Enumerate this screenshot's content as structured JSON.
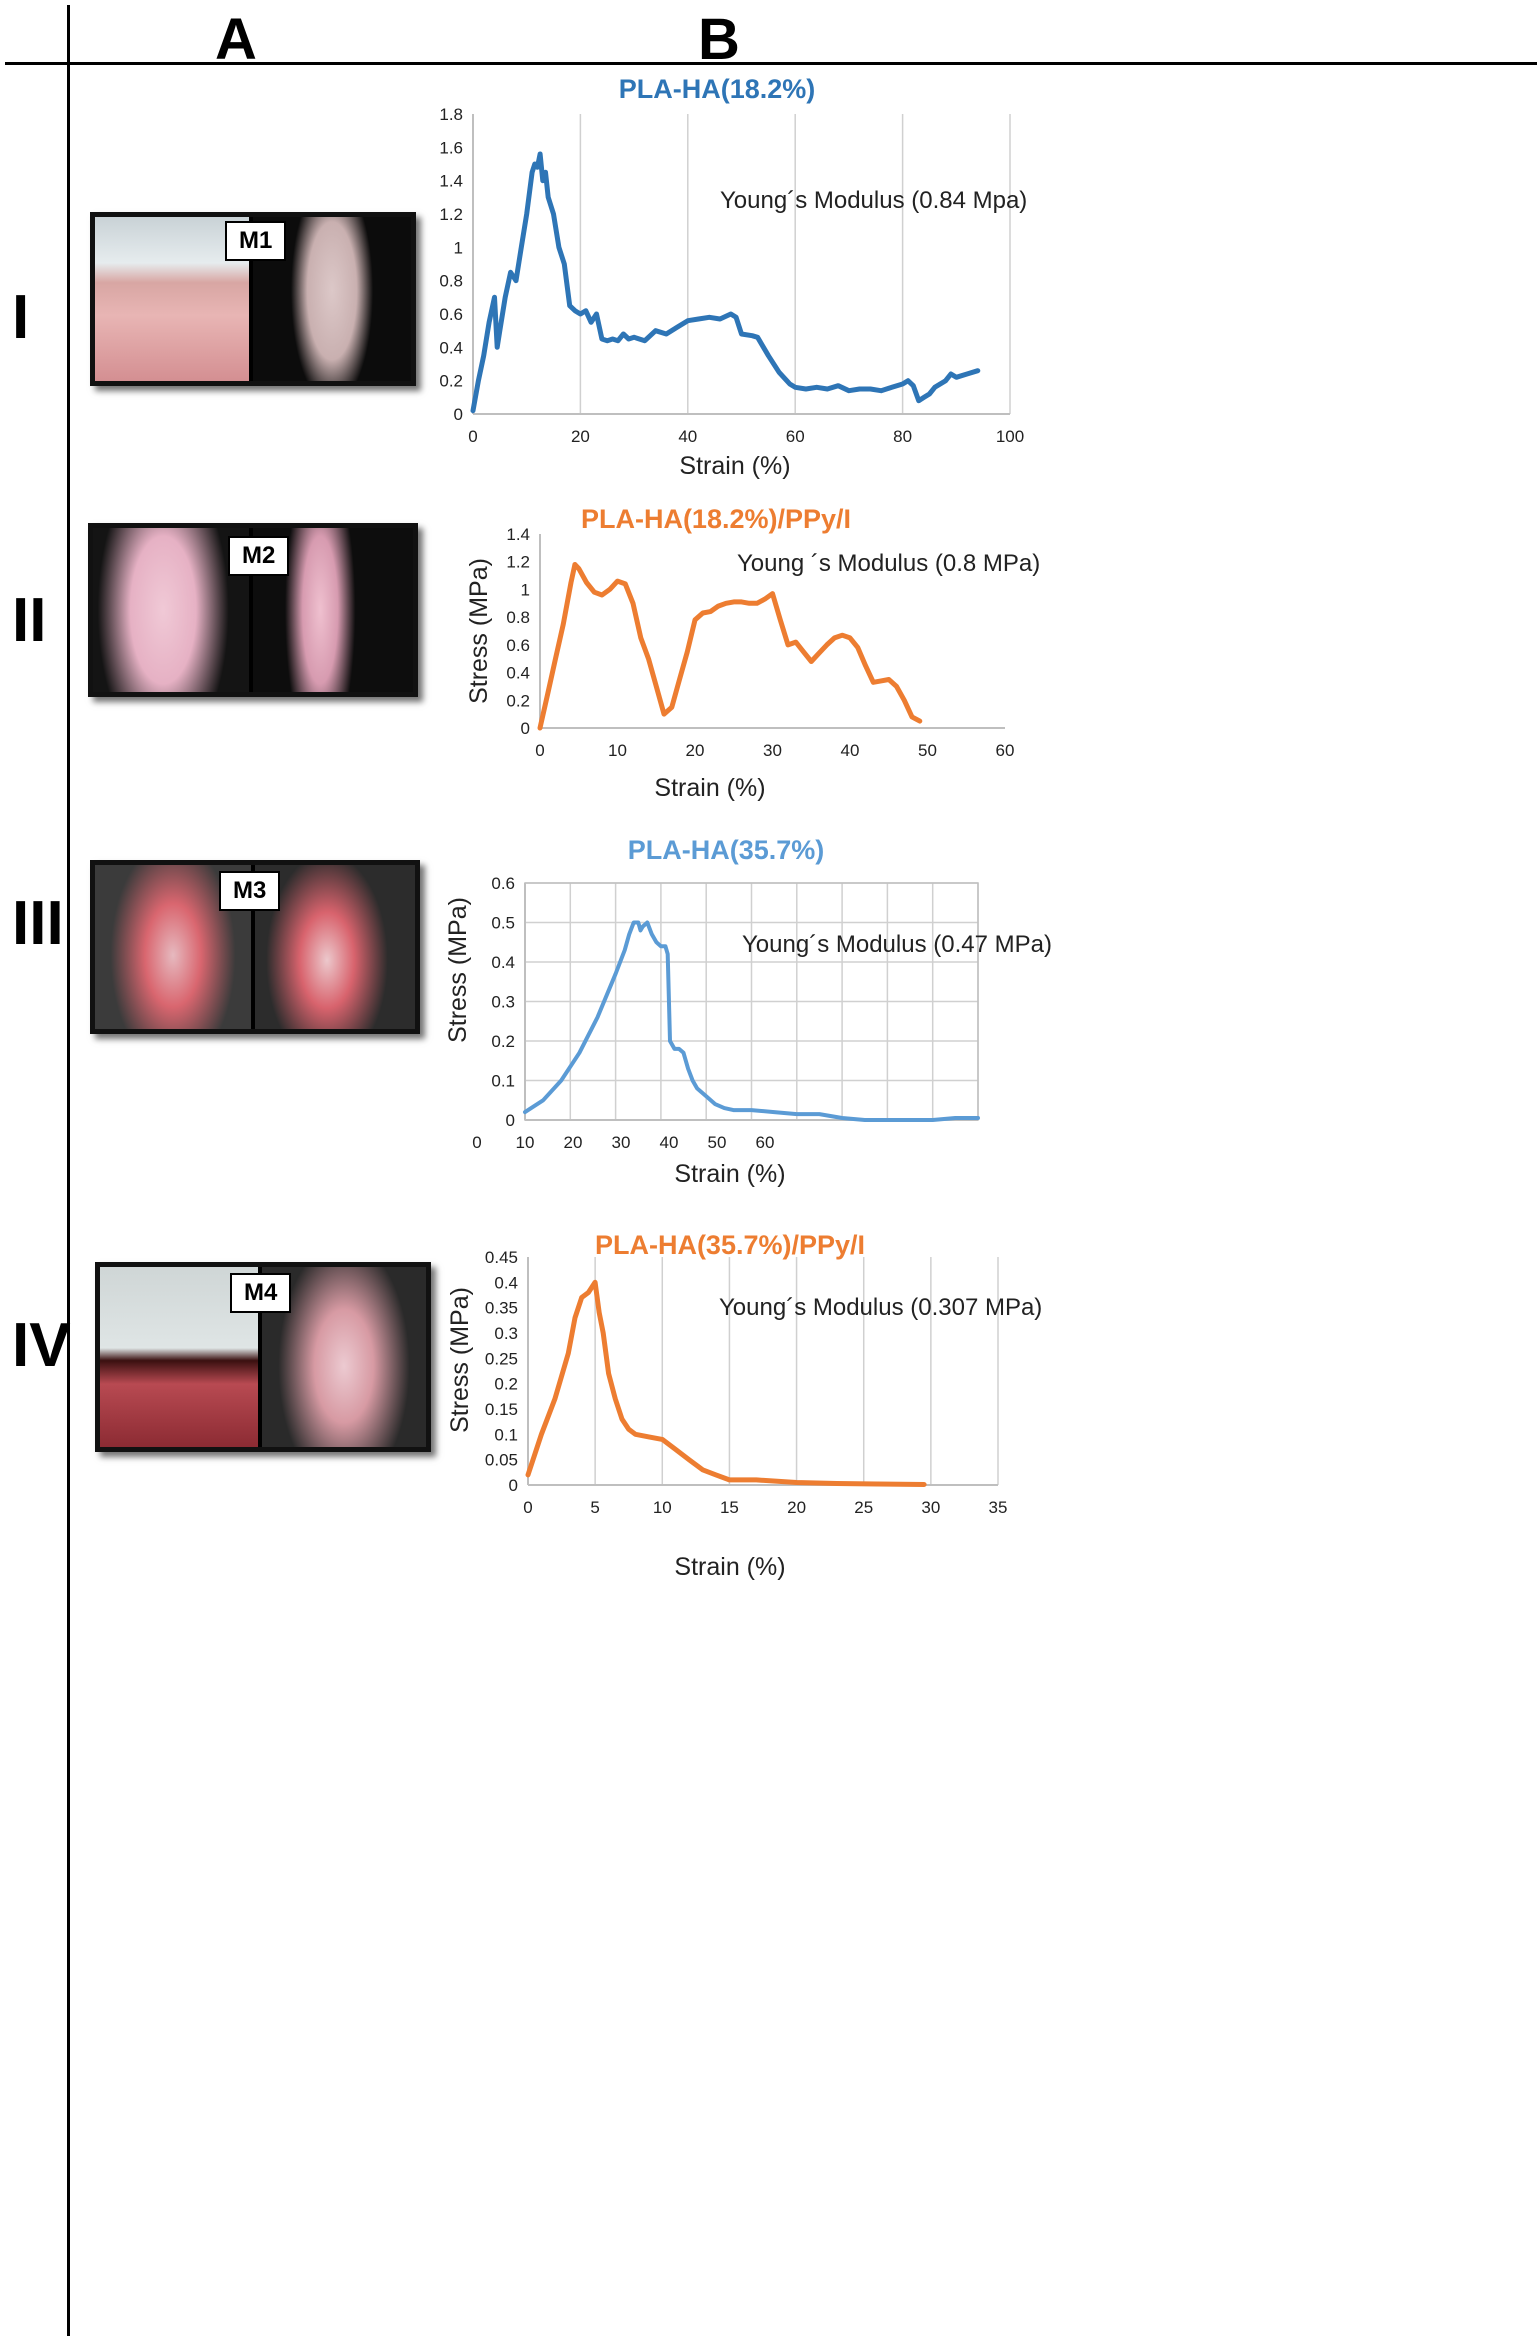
{
  "columns": {
    "a": "A",
    "b": "B"
  },
  "rows": [
    {
      "label": "I",
      "sample": "M1"
    },
    {
      "label": "II",
      "sample": "M2"
    },
    {
      "label": "III",
      "sample": "M3"
    },
    {
      "label": "IV",
      "sample": "M4"
    }
  ],
  "colors": {
    "blue": "#2e75b6",
    "light_blue": "#5b9bd5",
    "orange": "#ed7d31"
  },
  "chart_data": [
    {
      "type": "line",
      "title": "PLA-HA(18.2%)",
      "xlabel": "Strain (%)",
      "ylabel": "",
      "annotation": "Young´s Modulus  (0.84 Mpa)",
      "xlim": [
        0,
        100
      ],
      "ylim": [
        0,
        1.8
      ],
      "xticks": [
        "0",
        "20",
        "40",
        "60",
        "80",
        "100"
      ],
      "yticks": [
        "0",
        "0.2",
        "0.4",
        "0.6",
        "0.8",
        "1",
        "1.2",
        "1.4",
        "1.6",
        "1.8"
      ],
      "grid": "vertical",
      "series": [
        {
          "color": "#2e75b6",
          "x": [
            0,
            1,
            2,
            3,
            4,
            4.5,
            5,
            6,
            7,
            8,
            9,
            10,
            11,
            11.5,
            12,
            12.5,
            13,
            13.5,
            14,
            15,
            16,
            17,
            18,
            19,
            20,
            21,
            22,
            23,
            24,
            25,
            26,
            27,
            28,
            29,
            30,
            32,
            34,
            36,
            38,
            40,
            42,
            44,
            46,
            48,
            49,
            50,
            52,
            53,
            55,
            57,
            59,
            60,
            62,
            64,
            66,
            68,
            70,
            72,
            74,
            76,
            78,
            80,
            81,
            82,
            83,
            84,
            85,
            86,
            88,
            89,
            90,
            92,
            94
          ],
          "y": [
            0.02,
            0.2,
            0.35,
            0.55,
            0.7,
            0.4,
            0.5,
            0.7,
            0.85,
            0.8,
            1.0,
            1.2,
            1.45,
            1.5,
            1.48,
            1.56,
            1.4,
            1.45,
            1.3,
            1.2,
            1.0,
            0.9,
            0.65,
            0.62,
            0.6,
            0.62,
            0.55,
            0.6,
            0.45,
            0.44,
            0.45,
            0.44,
            0.48,
            0.45,
            0.46,
            0.44,
            0.5,
            0.48,
            0.52,
            0.56,
            0.57,
            0.58,
            0.57,
            0.6,
            0.58,
            0.48,
            0.47,
            0.46,
            0.35,
            0.25,
            0.18,
            0.16,
            0.15,
            0.16,
            0.15,
            0.17,
            0.14,
            0.15,
            0.15,
            0.14,
            0.16,
            0.18,
            0.2,
            0.17,
            0.08,
            0.1,
            0.12,
            0.16,
            0.2,
            0.24,
            0.22,
            0.24,
            0.26
          ]
        }
      ]
    },
    {
      "type": "line",
      "title": "PLA-HA(18.2%)/PPy/I",
      "xlabel": "Strain (%)",
      "ylabel": "Stress (MPa)",
      "annotation": "Young ´s Modulus  (0.8 MPa)",
      "xlim": [
        0,
        60
      ],
      "ylim": [
        0,
        1.4
      ],
      "xticks": [
        "0",
        "10",
        "20",
        "30",
        "40",
        "50",
        "60"
      ],
      "yticks": [
        "0",
        "0.2",
        "0.4",
        "0.6",
        "0.8",
        "1",
        "1.2",
        "1.4"
      ],
      "grid": "none",
      "series": [
        {
          "color": "#ed7d31",
          "x": [
            0,
            1,
            2,
            3,
            4,
            4.5,
            5,
            6,
            7,
            8,
            9,
            10,
            11,
            12,
            13,
            14,
            15,
            16,
            17,
            18,
            19,
            20,
            21,
            22,
            23,
            24,
            25,
            26,
            27,
            28,
            29,
            30,
            31,
            32,
            33,
            34,
            35,
            36,
            37,
            38,
            39,
            40,
            41,
            42,
            43,
            44,
            45,
            46,
            47,
            48,
            49
          ],
          "y": [
            0,
            0.25,
            0.5,
            0.75,
            1.05,
            1.18,
            1.15,
            1.05,
            0.98,
            0.96,
            1.0,
            1.06,
            1.04,
            0.9,
            0.65,
            0.5,
            0.3,
            0.1,
            0.15,
            0.35,
            0.55,
            0.78,
            0.83,
            0.84,
            0.88,
            0.9,
            0.91,
            0.91,
            0.9,
            0.9,
            0.93,
            0.97,
            0.78,
            0.6,
            0.62,
            0.55,
            0.48,
            0.54,
            0.6,
            0.65,
            0.67,
            0.65,
            0.58,
            0.45,
            0.33,
            0.34,
            0.35,
            0.3,
            0.2,
            0.08,
            0.05
          ]
        }
      ]
    },
    {
      "type": "line",
      "title": "PLA-HA(35.7%)",
      "xlabel": "Strain (%)",
      "ylabel": "Stress (MPa)",
      "annotation": "Young´s Modulus  (0.47 MPa)",
      "xlim": [
        0,
        1
      ],
      "ylim": [
        0,
        0.6
      ],
      "xticks": [
        "0",
        "10",
        "20",
        "30",
        "40",
        "50",
        "60"
      ],
      "yticks": [
        "0",
        "0.1",
        "0.2",
        "0.3",
        "0.4",
        "0.5",
        "0.6"
      ],
      "grid": "both",
      "series": [
        {
          "color": "#5b9bd5",
          "x": [
            0,
            0.04,
            0.08,
            0.12,
            0.16,
            0.2,
            0.22,
            0.23,
            0.24,
            0.25,
            0.255,
            0.26,
            0.27,
            0.28,
            0.29,
            0.3,
            0.31,
            0.315,
            0.32,
            0.33,
            0.34,
            0.35,
            0.36,
            0.37,
            0.38,
            0.4,
            0.42,
            0.44,
            0.46,
            0.5,
            0.55,
            0.6,
            0.65,
            0.7,
            0.75,
            0.8,
            0.85,
            0.9,
            0.95,
            1.0
          ],
          "y": [
            0.02,
            0.05,
            0.1,
            0.17,
            0.26,
            0.37,
            0.43,
            0.47,
            0.5,
            0.5,
            0.48,
            0.49,
            0.5,
            0.47,
            0.45,
            0.44,
            0.44,
            0.42,
            0.2,
            0.18,
            0.18,
            0.17,
            0.13,
            0.1,
            0.08,
            0.06,
            0.04,
            0.03,
            0.025,
            0.025,
            0.02,
            0.015,
            0.015,
            0.005,
            0,
            0,
            0,
            0,
            0.005,
            0.005
          ]
        }
      ]
    },
    {
      "type": "line",
      "title": "PLA-HA(35.7%)/PPy/I",
      "xlabel": "Strain (%)",
      "ylabel": "Stress (MPa)",
      "annotation": "Young´s Modulus  (0.307 MPa)",
      "xlim": [
        0,
        35
      ],
      "ylim": [
        0,
        0.45
      ],
      "xticks": [
        "0",
        "5",
        "10",
        "15",
        "20",
        "25",
        "30",
        "35"
      ],
      "yticks": [
        "0",
        "0.05",
        "0.1",
        "0.15",
        "0.2",
        "0.25",
        "0.3",
        "0.35",
        "0.4",
        "0.45"
      ],
      "grid": "vertical",
      "series": [
        {
          "color": "#ed7d31",
          "x": [
            0,
            0.5,
            1,
            2,
            3,
            3.5,
            4,
            4.5,
            5,
            5.3,
            5.6,
            6,
            6.5,
            7,
            7.5,
            8,
            9,
            10,
            11,
            12,
            13,
            14,
            15,
            17,
            20,
            23,
            26,
            29.5
          ],
          "y": [
            0.02,
            0.06,
            0.1,
            0.17,
            0.26,
            0.33,
            0.37,
            0.38,
            0.4,
            0.34,
            0.3,
            0.22,
            0.17,
            0.13,
            0.11,
            0.1,
            0.095,
            0.09,
            0.07,
            0.05,
            0.03,
            0.02,
            0.01,
            0.01,
            0.005,
            0.003,
            0.002,
            0.001
          ]
        }
      ]
    }
  ]
}
